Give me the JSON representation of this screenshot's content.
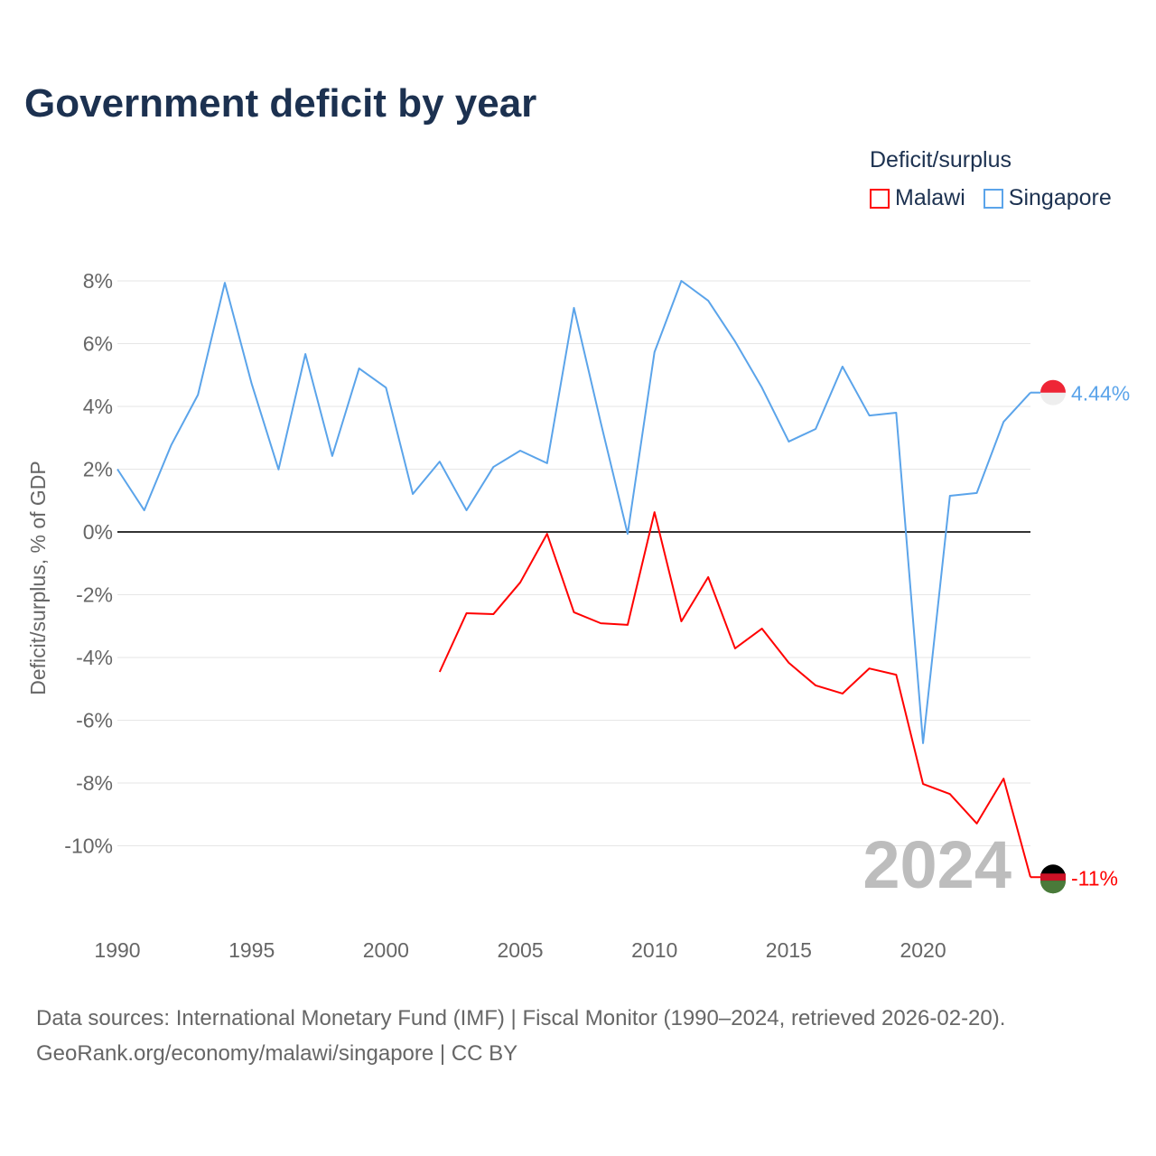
{
  "chart_data": {
    "type": "line",
    "title": "Government deficit by year",
    "ylabel": "Deficit/surplus, % of GDP",
    "xlabel": "",
    "legend_title": "Deficit/surplus",
    "legend_position": "top-right",
    "ylim": [
      -11.5,
      8
    ],
    "xlim": [
      1990,
      2024
    ],
    "yticks": [
      8,
      6,
      4,
      2,
      0,
      -2,
      -4,
      -6,
      -8,
      -10
    ],
    "ytick_labels": [
      "8%",
      "6%",
      "4%",
      "2%",
      "0%",
      "-2%",
      "-4%",
      "-6%",
      "-8%",
      "-10%"
    ],
    "xticks": [
      1990,
      1995,
      2000,
      2005,
      2010,
      2015,
      2020
    ],
    "xtick_labels": [
      "1990",
      "1995",
      "2000",
      "2005",
      "2010",
      "2015",
      "2020"
    ],
    "year_watermark": "2024",
    "series": [
      {
        "name": "Malawi",
        "color": "#ff0000",
        "end_label": "-11%",
        "x": [
          2002,
          2003,
          2004,
          2005,
          2006,
          2007,
          2008,
          2009,
          2010,
          2011,
          2012,
          2013,
          2014,
          2015,
          2016,
          2017,
          2018,
          2019,
          2020,
          2021,
          2022,
          2023,
          2024
        ],
        "values": [
          -4.46,
          -2.59,
          -2.62,
          -1.61,
          -0.06,
          -2.56,
          -2.91,
          -2.96,
          0.63,
          -2.85,
          -1.44,
          -3.71,
          -3.08,
          -4.17,
          -4.89,
          -5.15,
          -4.35,
          -4.55,
          -8.03,
          -8.35,
          -9.29,
          -7.86,
          -11.0
        ]
      },
      {
        "name": "Singapore",
        "color": "#5ba4ea",
        "end_label": "4.44%",
        "x": [
          1990,
          1991,
          1992,
          1993,
          1994,
          1995,
          1996,
          1997,
          1998,
          1999,
          2000,
          2001,
          2002,
          2003,
          2004,
          2005,
          2006,
          2007,
          2008,
          2009,
          2010,
          2011,
          2012,
          2013,
          2014,
          2015,
          2016,
          2017,
          2018,
          2019,
          2020,
          2021,
          2022,
          2023,
          2024
        ],
        "values": [
          2.0,
          0.69,
          2.76,
          4.37,
          7.94,
          4.72,
          1.99,
          5.67,
          2.42,
          5.21,
          4.6,
          1.21,
          2.24,
          0.69,
          2.07,
          2.59,
          2.19,
          7.14,
          3.48,
          -0.06,
          5.73,
          8.0,
          7.37,
          6.07,
          4.6,
          2.88,
          3.28,
          5.27,
          3.71,
          3.8,
          -6.73,
          1.15,
          1.24,
          3.51,
          4.44
        ]
      }
    ]
  },
  "source": {
    "line1": "Data sources: International Monetary Fund (IMF) | Fiscal Monitor (1990–2024, retrieved 2026-02-20).",
    "line2": "GeoRank.org/economy/malawi/singapore | CC BY"
  }
}
